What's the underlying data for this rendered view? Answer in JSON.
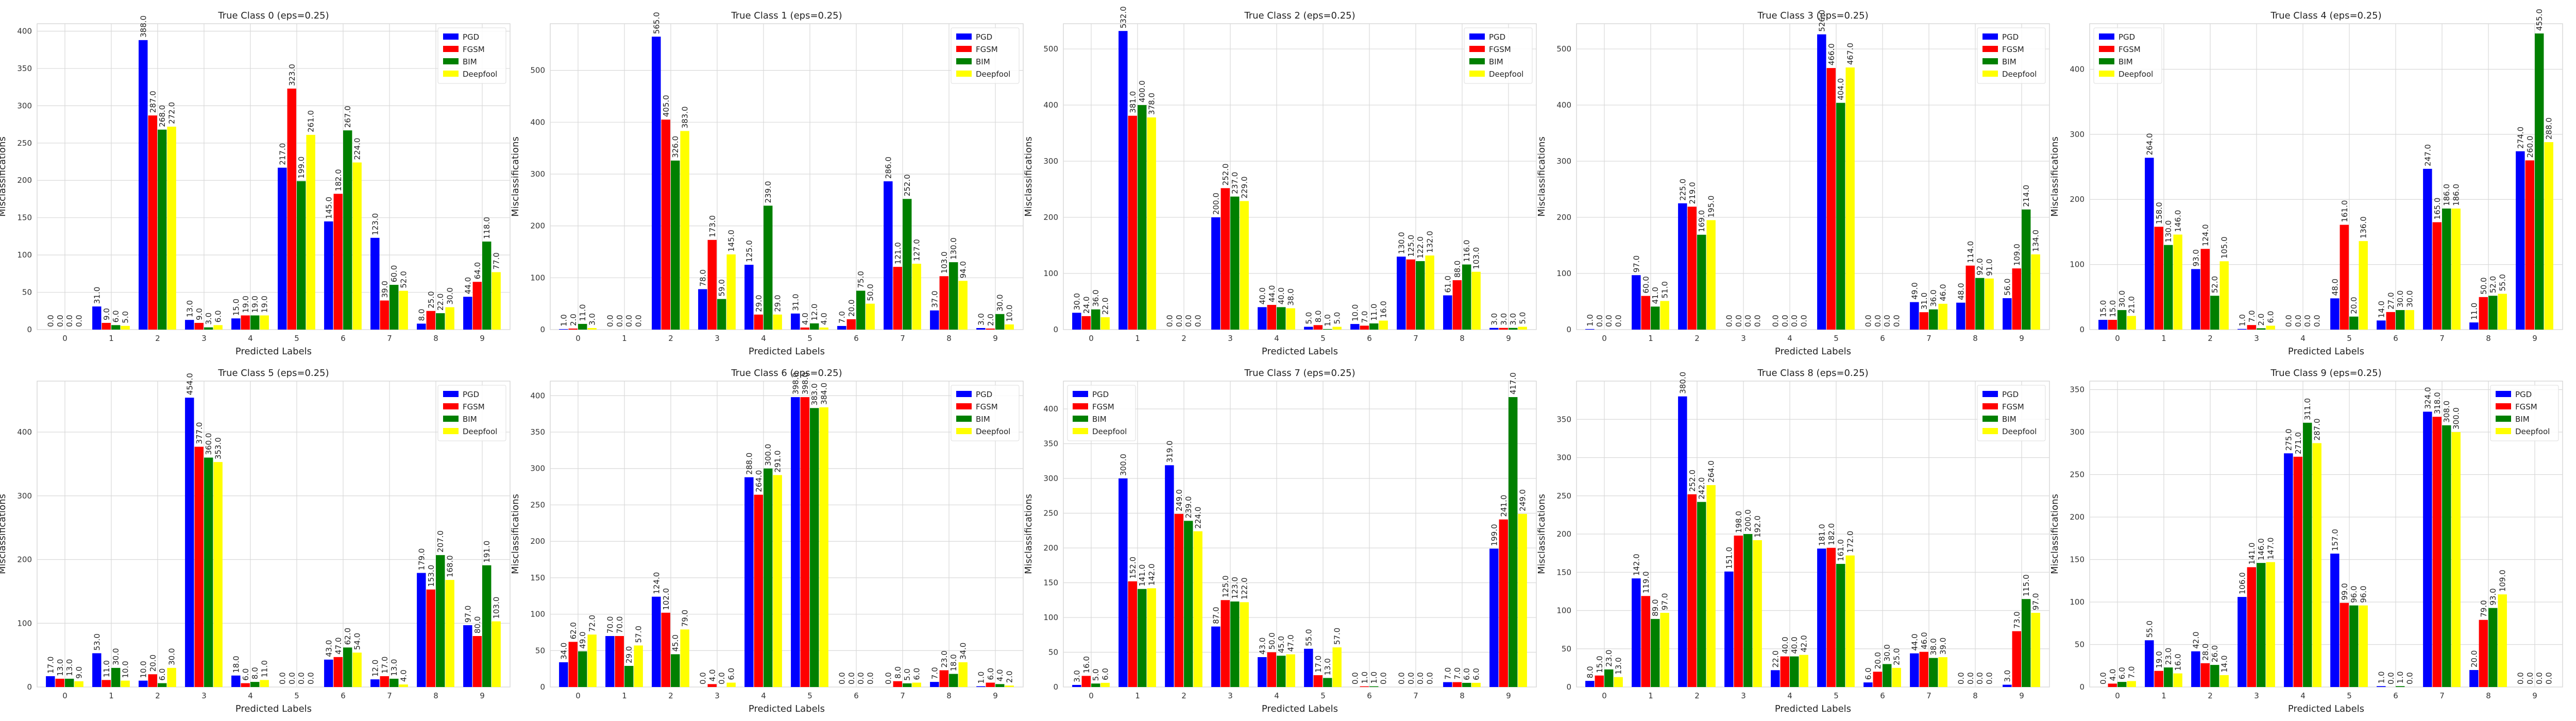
{
  "chart_data": [
    {
      "type": "bar",
      "title": "True Class 0 (eps=0.25)",
      "xlabel": "Predicted Labels",
      "ylabel": "Misclassifications",
      "ylim": [
        0,
        410
      ],
      "yticks": [
        0,
        50,
        100,
        150,
        200,
        250,
        300,
        350,
        400
      ],
      "legend_position": "top-right",
      "categories": [
        "0",
        "1",
        "2",
        "3",
        "4",
        "5",
        "6",
        "7",
        "8",
        "9"
      ],
      "series": [
        {
          "name": "PGD",
          "color": "#0000ff",
          "values": [
            0,
            31,
            388,
            13,
            15,
            217,
            145,
            123,
            8,
            44
          ]
        },
        {
          "name": "FGSM",
          "color": "#ff0000",
          "values": [
            0,
            9,
            287,
            9,
            19,
            323,
            182,
            39,
            25,
            64
          ]
        },
        {
          "name": "BIM",
          "color": "#008000",
          "values": [
            0,
            6,
            268,
            3,
            19,
            199,
            267,
            60,
            22,
            118
          ]
        },
        {
          "name": "Deepfool",
          "color": "#ffff00",
          "values": [
            0,
            5,
            272,
            6,
            19,
            261,
            224,
            52,
            30,
            77
          ]
        }
      ]
    },
    {
      "type": "bar",
      "title": "True Class 1 (eps=0.25)",
      "xlabel": "Predicted Labels",
      "ylabel": "Misclassifications",
      "ylim": [
        0,
        590
      ],
      "yticks": [
        0,
        100,
        200,
        300,
        400,
        500
      ],
      "legend_position": "top-right",
      "categories": [
        "0",
        "1",
        "2",
        "3",
        "4",
        "5",
        "6",
        "7",
        "8",
        "9"
      ],
      "series": [
        {
          "name": "PGD",
          "color": "#0000ff",
          "values": [
            1,
            0,
            565,
            78,
            125,
            31,
            7,
            286,
            37,
            3
          ]
        },
        {
          "name": "FGSM",
          "color": "#ff0000",
          "values": [
            2,
            0,
            405,
            173,
            29,
            4,
            20,
            121,
            103,
            2
          ]
        },
        {
          "name": "BIM",
          "color": "#008000",
          "values": [
            11,
            0,
            326,
            59,
            239,
            12,
            75,
            252,
            130,
            30
          ]
        },
        {
          "name": "Deepfool",
          "color": "#ffff00",
          "values": [
            3,
            0,
            383,
            145,
            29,
            4,
            50,
            127,
            94,
            10
          ]
        }
      ]
    },
    {
      "type": "bar",
      "title": "True Class 2 (eps=0.25)",
      "xlabel": "Predicted Labels",
      "ylabel": "Misclassifications",
      "ylim": [
        0,
        545
      ],
      "yticks": [
        0,
        100,
        200,
        300,
        400,
        500
      ],
      "legend_position": "top-right",
      "categories": [
        "0",
        "1",
        "2",
        "3",
        "4",
        "5",
        "6",
        "7",
        "8",
        "9"
      ],
      "series": [
        {
          "name": "PGD",
          "color": "#0000ff",
          "values": [
            30,
            532,
            0,
            200,
            40,
            5,
            10,
            130,
            61,
            3
          ]
        },
        {
          "name": "FGSM",
          "color": "#ff0000",
          "values": [
            24,
            381,
            0,
            252,
            44,
            8,
            7,
            125,
            88,
            3
          ]
        },
        {
          "name": "BIM",
          "color": "#008000",
          "values": [
            36,
            400,
            0,
            237,
            40,
            1,
            11,
            122,
            116,
            3
          ]
        },
        {
          "name": "Deepfool",
          "color": "#ffff00",
          "values": [
            22,
            378,
            0,
            229,
            38,
            5,
            16,
            132,
            103,
            5
          ]
        }
      ]
    },
    {
      "type": "bar",
      "title": "True Class 3 (eps=0.25)",
      "xlabel": "Predicted Labels",
      "ylabel": "Misclassifications",
      "ylim": [
        0,
        545
      ],
      "yticks": [
        0,
        100,
        200,
        300,
        400,
        500
      ],
      "legend_position": "top-right",
      "categories": [
        "0",
        "1",
        "2",
        "3",
        "4",
        "5",
        "6",
        "7",
        "8",
        "9"
      ],
      "series": [
        {
          "name": "PGD",
          "color": "#0000ff",
          "values": [
            1,
            97,
            225,
            0,
            0,
            526,
            0,
            49,
            48,
            56
          ]
        },
        {
          "name": "FGSM",
          "color": "#ff0000",
          "values": [
            0,
            60,
            219,
            0,
            0,
            466,
            0,
            31,
            114,
            109
          ]
        },
        {
          "name": "BIM",
          "color": "#008000",
          "values": [
            0,
            41,
            169,
            0,
            0,
            404,
            0,
            36,
            92,
            214
          ]
        },
        {
          "name": "Deepfool",
          "color": "#ffff00",
          "values": [
            0,
            51,
            195,
            0,
            0,
            467,
            0,
            46,
            91,
            134
          ]
        }
      ]
    },
    {
      "type": "bar",
      "title": "True Class 4 (eps=0.25)",
      "xlabel": "Predicted Labels",
      "ylabel": "Misclassifications",
      "ylim": [
        0,
        470
      ],
      "yticks": [
        0,
        100,
        200,
        300,
        400
      ],
      "legend_position": "top-left",
      "categories": [
        "0",
        "1",
        "2",
        "3",
        "4",
        "5",
        "6",
        "7",
        "8",
        "9"
      ],
      "series": [
        {
          "name": "PGD",
          "color": "#0000ff",
          "values": [
            15,
            264,
            93,
            1,
            0,
            48,
            14,
            247,
            11,
            274
          ]
        },
        {
          "name": "FGSM",
          "color": "#ff0000",
          "values": [
            15,
            158,
            124,
            7,
            0,
            161,
            27,
            165,
            50,
            260
          ]
        },
        {
          "name": "BIM",
          "color": "#008000",
          "values": [
            30,
            130,
            52,
            2,
            0,
            20,
            30,
            186,
            52,
            455
          ]
        },
        {
          "name": "Deepfool",
          "color": "#ffff00",
          "values": [
            21,
            146,
            105,
            6,
            0,
            136,
            30,
            186,
            55,
            288
          ]
        }
      ]
    },
    {
      "type": "bar",
      "title": "True Class 5 (eps=0.25)",
      "xlabel": "Predicted Labels",
      "ylabel": "Misclassifications",
      "ylim": [
        0,
        480
      ],
      "yticks": [
        0,
        100,
        200,
        300,
        400
      ],
      "legend_position": "top-right",
      "categories": [
        "0",
        "1",
        "2",
        "3",
        "4",
        "5",
        "6",
        "7",
        "8",
        "9"
      ],
      "series": [
        {
          "name": "PGD",
          "color": "#0000ff",
          "values": [
            17,
            53,
            10,
            454,
            18,
            0,
            43,
            12,
            179,
            97
          ]
        },
        {
          "name": "FGSM",
          "color": "#ff0000",
          "values": [
            13,
            11,
            20,
            377,
            6,
            0,
            47,
            17,
            153,
            80
          ]
        },
        {
          "name": "BIM",
          "color": "#008000",
          "values": [
            13,
            30,
            6,
            360,
            8,
            0,
            62,
            13,
            207,
            191
          ]
        },
        {
          "name": "Deepfool",
          "color": "#ffff00",
          "values": [
            9,
            10,
            30,
            353,
            11,
            0,
            54,
            4,
            168,
            103
          ]
        }
      ]
    },
    {
      "type": "bar",
      "title": "True Class 6 (eps=0.25)",
      "xlabel": "Predicted Labels",
      "ylabel": "Misclassifications",
      "ylim": [
        0,
        420
      ],
      "yticks": [
        0,
        50,
        100,
        150,
        200,
        250,
        300,
        350,
        400
      ],
      "legend_position": "top-right",
      "categories": [
        "0",
        "1",
        "2",
        "3",
        "4",
        "5",
        "6",
        "7",
        "8",
        "9"
      ],
      "series": [
        {
          "name": "PGD",
          "color": "#0000ff",
          "values": [
            34,
            70,
            124,
            0,
            288,
            398,
            0,
            0,
            7,
            1
          ]
        },
        {
          "name": "FGSM",
          "color": "#ff0000",
          "values": [
            62,
            70,
            102,
            4,
            264,
            398,
            0,
            8,
            23,
            6
          ]
        },
        {
          "name": "BIM",
          "color": "#008000",
          "values": [
            49,
            29,
            45,
            0,
            300,
            383,
            0,
            5,
            18,
            4
          ]
        },
        {
          "name": "Deepfool",
          "color": "#ffff00",
          "values": [
            72,
            57,
            79,
            6,
            291,
            384,
            0,
            6,
            34,
            2
          ]
        }
      ]
    },
    {
      "type": "bar",
      "title": "True Class 7 (eps=0.25)",
      "xlabel": "Predicted Labels",
      "ylabel": "Misclassifications",
      "ylim": [
        0,
        440
      ],
      "yticks": [
        0,
        50,
        100,
        150,
        200,
        250,
        300,
        350,
        400
      ],
      "legend_position": "top-left",
      "categories": [
        "0",
        "1",
        "2",
        "3",
        "4",
        "5",
        "6",
        "7",
        "8",
        "9"
      ],
      "series": [
        {
          "name": "PGD",
          "color": "#0000ff",
          "values": [
            3,
            300,
            319,
            87,
            43,
            55,
            0,
            0,
            7,
            199
          ]
        },
        {
          "name": "FGSM",
          "color": "#ff0000",
          "values": [
            16,
            152,
            249,
            125,
            50,
            17,
            1,
            0,
            7,
            241
          ]
        },
        {
          "name": "BIM",
          "color": "#008000",
          "values": [
            5,
            141,
            239,
            123,
            45,
            13,
            1,
            0,
            6,
            417
          ]
        },
        {
          "name": "Deepfool",
          "color": "#ffff00",
          "values": [
            6,
            142,
            224,
            122,
            47,
            57,
            0,
            0,
            6,
            249
          ]
        }
      ]
    },
    {
      "type": "bar",
      "title": "True Class 8 (eps=0.25)",
      "xlabel": "Predicted Labels",
      "ylabel": "Misclassifications",
      "ylim": [
        0,
        400
      ],
      "yticks": [
        0,
        50,
        100,
        150,
        200,
        250,
        300,
        350
      ],
      "legend_position": "top-right",
      "categories": [
        "0",
        "1",
        "2",
        "3",
        "4",
        "5",
        "6",
        "7",
        "8",
        "9"
      ],
      "series": [
        {
          "name": "PGD",
          "color": "#0000ff",
          "values": [
            8,
            142,
            380,
            151,
            22,
            181,
            6,
            44,
            0,
            3
          ]
        },
        {
          "name": "FGSM",
          "color": "#ff0000",
          "values": [
            15,
            119,
            252,
            198,
            40,
            182,
            20,
            46,
            0,
            73
          ]
        },
        {
          "name": "BIM",
          "color": "#008000",
          "values": [
            23,
            89,
            242,
            200,
            40,
            161,
            30,
            38,
            0,
            115
          ]
        },
        {
          "name": "Deepfool",
          "color": "#ffff00",
          "values": [
            13,
            97,
            264,
            192,
            42,
            172,
            25,
            39,
            0,
            97
          ]
        }
      ]
    },
    {
      "type": "bar",
      "title": "True Class 9 (eps=0.25)",
      "xlabel": "Predicted Labels",
      "ylabel": "Misclassifications",
      "ylim": [
        0,
        360
      ],
      "yticks": [
        0,
        50,
        100,
        150,
        200,
        250,
        300,
        350
      ],
      "legend_position": "top-right",
      "categories": [
        "0",
        "1",
        "2",
        "3",
        "4",
        "5",
        "6",
        "7",
        "8",
        "9"
      ],
      "series": [
        {
          "name": "PGD",
          "color": "#0000ff",
          "values": [
            0,
            55,
            42,
            106,
            275,
            157,
            1,
            324,
            20,
            0
          ]
        },
        {
          "name": "FGSM",
          "color": "#ff0000",
          "values": [
            4,
            19,
            28,
            141,
            271,
            99,
            0,
            318,
            79,
            0
          ]
        },
        {
          "name": "BIM",
          "color": "#008000",
          "values": [
            6,
            23,
            26,
            146,
            311,
            96,
            1,
            308,
            93,
            0
          ]
        },
        {
          "name": "Deepfool",
          "color": "#ffff00",
          "values": [
            7,
            16,
            14,
            147,
            287,
            96,
            0,
            300,
            109,
            0
          ]
        }
      ]
    }
  ]
}
